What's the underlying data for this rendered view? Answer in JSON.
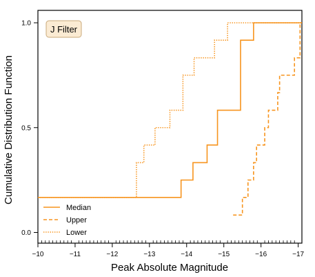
{
  "chart_data": {
    "type": "line",
    "step": "post",
    "xlabel": "Peak Absolute Magnitude",
    "ylabel": "Cumulative Distribution Function",
    "xlim": [
      -10,
      -17.1
    ],
    "ylim": [
      0,
      1
    ],
    "x_inverted": true,
    "xticks": [
      -10,
      -11,
      -12,
      -13,
      -14,
      -15,
      -16,
      -17
    ],
    "xtick_labels": [
      "−10",
      "−11",
      "−12",
      "−13",
      "−14",
      "−15",
      "−16",
      "−17"
    ],
    "yticks": [
      0.0,
      0.5,
      1.0
    ],
    "ytick_labels": [
      "0.0",
      "0.5",
      "1.0"
    ],
    "grid": false,
    "legend_position": "bottom-left",
    "annotation": "J Filter",
    "color": "#f7941d",
    "series": [
      {
        "name": "Median",
        "linestyle": "solid",
        "x": [
          -10,
          -13.85,
          -14.17,
          -14.55,
          -14.83,
          -15.45,
          -15.8,
          -17.1
        ],
        "y": [
          0.167,
          0.25,
          0.333,
          0.417,
          0.583,
          0.917,
          1.0,
          1.0
        ]
      },
      {
        "name": "Upper",
        "linestyle": "dashed",
        "x": [
          -15.25,
          -15.5,
          -15.65,
          -15.8,
          -15.88,
          -15.95,
          -16.1,
          -16.2,
          -16.3,
          -16.45,
          -16.5,
          -16.6,
          -16.9,
          -17.05,
          -17.1
        ],
        "y": [
          0.083,
          0.167,
          0.25,
          0.333,
          0.417,
          0.417,
          0.5,
          0.583,
          0.583,
          0.667,
          0.75,
          0.75,
          0.833,
          1.0,
          1.0
        ]
      },
      {
        "name": "Lower",
        "linestyle": "dotted",
        "x": [
          -10,
          -12.65,
          -12.85,
          -13.15,
          -13.55,
          -13.9,
          -14.2,
          -14.75,
          -15.1,
          -15.55,
          -17.1
        ],
        "y": [
          0.167,
          0.333,
          0.417,
          0.5,
          0.583,
          0.75,
          0.833,
          0.917,
          1.0,
          1.0,
          1.0
        ]
      }
    ]
  }
}
